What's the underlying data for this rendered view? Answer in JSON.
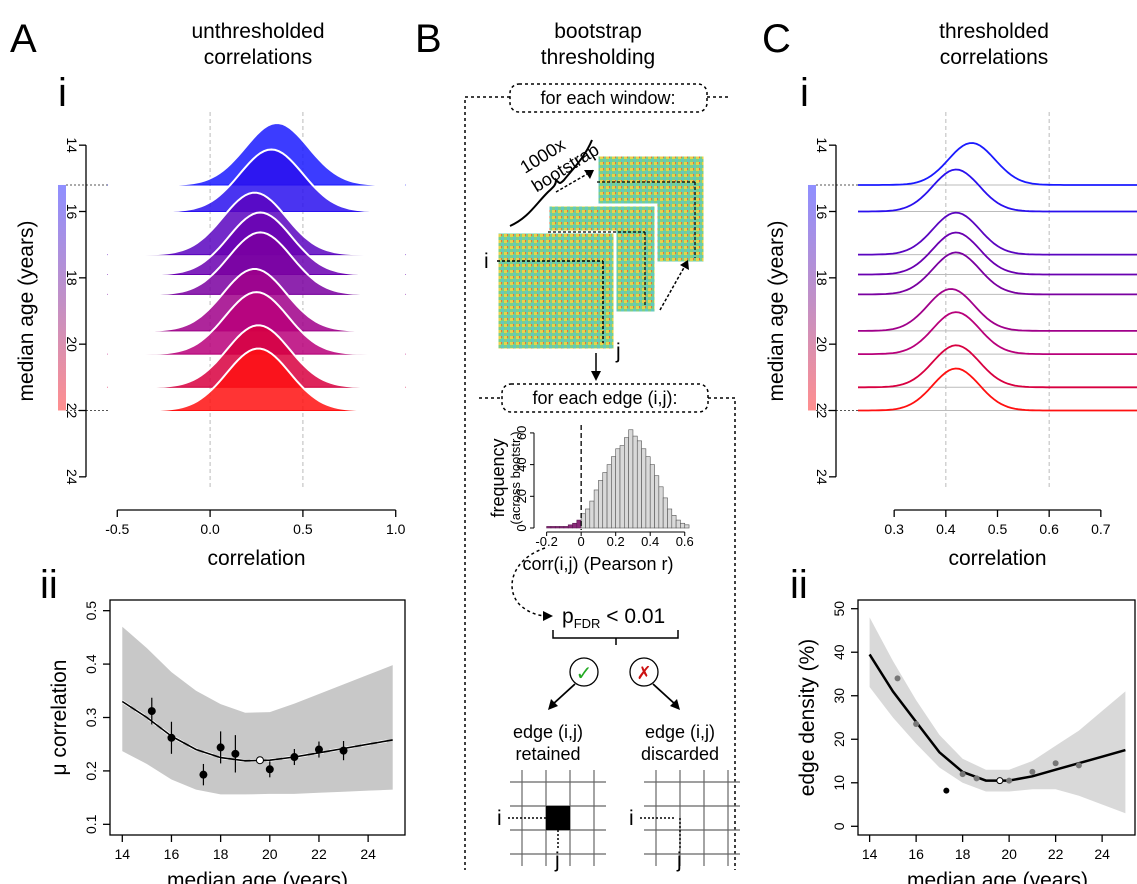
{
  "panels": {
    "A": {
      "letter": "A",
      "title_line1": "unthresholded",
      "title_line2": "correlations",
      "i_label": "i",
      "ii_label": "ii"
    },
    "B": {
      "letter": "B",
      "title_line1": "bootstrap",
      "title_line2": "thresholding",
      "window_box": "for each window:",
      "bootstrap_line1": "1000x",
      "bootstrap_line2": "bootstrap",
      "i_label": "i",
      "j_label": "j",
      "edge_box": "for each edge (i,j):",
      "pfdr": "p",
      "pfdr_sub": "FDR",
      "pfdr_rest": " < 0.01",
      "check": "✓",
      "cross": "✗",
      "retained_line1": "edge (i,j)",
      "retained_line2": "retained",
      "discarded_line1": "edge (i,j)",
      "discarded_line2": "discarded",
      "grid_i": "i",
      "grid_j": "j"
    },
    "C": {
      "letter": "C",
      "title_line1": "thresholded",
      "title_line2": "correlations",
      "i_label": "i",
      "ii_label": "ii"
    }
  },
  "colors": {
    "blue": "#1a1aff",
    "purple": "#7a00aa",
    "red": "#ff1010",
    "grey_band": "#d9d9d9",
    "magenta_hist": "#8b2a7a"
  },
  "chart_data": [
    {
      "id": "A-i",
      "type": "ridgeline",
      "xlabel": "correlation",
      "ylabel": "median age (years)",
      "xticks": [
        "-0.5",
        "0.0",
        "0.5",
        "1.0"
      ],
      "xtick_values": [
        -0.5,
        0.0,
        0.5,
        1.0
      ],
      "yticks": [
        "14",
        "16",
        "18",
        "20",
        "22",
        "24"
      ],
      "ytick_values": [
        14,
        16,
        18,
        20,
        22,
        24
      ],
      "xlim": [
        -0.55,
        1.05
      ],
      "ylim": [
        13.0,
        25.0
      ],
      "series": [
        {
          "age": 15.2,
          "peak": 0.36,
          "color": "#1a1aff"
        },
        {
          "age": 16.0,
          "peak": 0.33,
          "color": "#2a10ee"
        },
        {
          "age": 17.3,
          "peak": 0.24,
          "color": "#5a05c0"
        },
        {
          "age": 17.9,
          "peak": 0.27,
          "color": "#6a00b0"
        },
        {
          "age": 18.5,
          "peak": 0.27,
          "color": "#7a00a0"
        },
        {
          "age": 19.6,
          "peak": 0.24,
          "color": "#a0008a"
        },
        {
          "age": 20.3,
          "peak": 0.25,
          "color": "#b8007a"
        },
        {
          "age": 21.3,
          "peak": 0.26,
          "color": "#d80040"
        },
        {
          "age": 22.0,
          "peak": 0.26,
          "color": "#ff1010"
        }
      ]
    },
    {
      "id": "A-ii",
      "type": "scatter",
      "xlabel": "median age (years)",
      "ylabel": "μ correlation",
      "xticks": [
        "14",
        "16",
        "18",
        "20",
        "22",
        "24"
      ],
      "xtick_values": [
        14,
        16,
        18,
        20,
        22,
        24
      ],
      "yticks": [
        "0.1",
        "0.2",
        "0.3",
        "0.4",
        "0.5"
      ],
      "ytick_values": [
        0.1,
        0.2,
        0.3,
        0.4,
        0.5
      ],
      "xlim": [
        13.5,
        25.5
      ],
      "ylim": [
        0.08,
        0.52
      ],
      "points": [
        {
          "x": 15.2,
          "y": 0.312,
          "err": 0.025
        },
        {
          "x": 16.0,
          "y": 0.262,
          "err": 0.03
        },
        {
          "x": 17.3,
          "y": 0.193,
          "err": 0.02
        },
        {
          "x": 18.0,
          "y": 0.244,
          "err": 0.03
        },
        {
          "x": 18.6,
          "y": 0.232,
          "err": 0.035
        },
        {
          "x": 19.6,
          "y": 0.22,
          "open": true
        },
        {
          "x": 20.0,
          "y": 0.203,
          "err": 0.015
        },
        {
          "x": 21.0,
          "y": 0.226,
          "err": 0.015
        },
        {
          "x": 22.0,
          "y": 0.24,
          "err": 0.015
        },
        {
          "x": 23.0,
          "y": 0.238,
          "err": 0.018
        }
      ],
      "fit": [
        [
          14,
          0.33
        ],
        [
          15,
          0.3
        ],
        [
          16,
          0.265
        ],
        [
          17,
          0.24
        ],
        [
          18,
          0.225
        ],
        [
          19,
          0.219
        ],
        [
          20,
          0.22
        ],
        [
          21,
          0.226
        ],
        [
          22,
          0.234
        ],
        [
          23,
          0.242
        ],
        [
          24,
          0.25
        ],
        [
          25,
          0.258
        ]
      ]
    },
    {
      "id": "B-histogram",
      "type": "bar",
      "xlabel": "corr(i,j) (Pearson r)",
      "ylabel": "frequency (across bootstr.)",
      "xticks": [
        "-0.2",
        "0",
        "0.2",
        "0.4",
        "0.6"
      ],
      "xtick_values": [
        -0.2,
        0,
        0.2,
        0.4,
        0.6
      ],
      "yticks": [
        "0",
        "20",
        "40",
        "60"
      ],
      "ytick_values": [
        0,
        20,
        40,
        60
      ],
      "xlim": [
        -0.25,
        0.7
      ],
      "ylim": [
        0,
        65
      ],
      "bin_width": 0.025,
      "bin_starts": [
        -0.2,
        -0.175,
        -0.15,
        -0.125,
        -0.1,
        -0.075,
        -0.05,
        -0.025,
        0.0,
        0.025,
        0.05,
        0.075,
        0.1,
        0.125,
        0.15,
        0.175,
        0.2,
        0.225,
        0.25,
        0.275,
        0.3,
        0.325,
        0.35,
        0.375,
        0.4,
        0.425,
        0.45,
        0.475,
        0.5,
        0.525,
        0.55,
        0.575,
        0.6
      ],
      "counts": [
        1,
        1,
        1,
        1,
        1,
        2,
        3,
        5,
        9,
        12,
        17,
        24,
        30,
        35,
        40,
        45,
        50,
        52,
        57,
        62,
        58,
        55,
        50,
        45,
        40,
        33,
        26,
        19,
        12,
        8,
        5,
        3,
        2
      ],
      "dashed_x": 0
    },
    {
      "id": "C-i",
      "type": "ridgeline",
      "xlabel": "correlation",
      "ylabel": "median age (years)",
      "xticks": [
        "0.3",
        "0.4",
        "0.5",
        "0.6",
        "0.7"
      ],
      "xtick_values": [
        0.3,
        0.4,
        0.5,
        0.6,
        0.7
      ],
      "yticks": [
        "14",
        "16",
        "18",
        "20",
        "22",
        "24"
      ],
      "ytick_values": [
        14,
        16,
        18,
        20,
        22,
        24
      ],
      "xlim": [
        0.23,
        0.77
      ],
      "ylim": [
        13.0,
        25.0
      ],
      "series": [
        {
          "age": 15.2,
          "peak": 0.45,
          "color": "#1a1aff"
        },
        {
          "age": 16.0,
          "peak": 0.42,
          "color": "#2a10ee"
        },
        {
          "age": 17.3,
          "peak": 0.42,
          "color": "#5a05c0"
        },
        {
          "age": 17.9,
          "peak": 0.42,
          "color": "#6a00b0"
        },
        {
          "age": 18.5,
          "peak": 0.42,
          "color": "#7a00a0"
        },
        {
          "age": 19.6,
          "peak": 0.41,
          "color": "#a0008a"
        },
        {
          "age": 20.3,
          "peak": 0.42,
          "color": "#b8007a"
        },
        {
          "age": 21.3,
          "peak": 0.42,
          "color": "#d80040"
        },
        {
          "age": 22.0,
          "peak": 0.42,
          "color": "#ff1010"
        }
      ]
    },
    {
      "id": "C-ii",
      "type": "scatter",
      "xlabel": "median age (years)",
      "ylabel": "edge density (%)",
      "xticks": [
        "14",
        "16",
        "18",
        "20",
        "22",
        "24"
      ],
      "xtick_values": [
        14,
        16,
        18,
        20,
        22,
        24
      ],
      "yticks": [
        "0",
        "10",
        "20",
        "30",
        "40",
        "50"
      ],
      "ytick_values": [
        0,
        10,
        20,
        30,
        40,
        50
      ],
      "xlim": [
        13.5,
        25.5
      ],
      "ylim": [
        -2,
        52
      ],
      "points": [
        {
          "x": 15.2,
          "y": 34
        },
        {
          "x": 16.0,
          "y": 23.5
        },
        {
          "x": 17.3,
          "y": 8.2,
          "dark": true
        },
        {
          "x": 18.0,
          "y": 12
        },
        {
          "x": 18.6,
          "y": 11
        },
        {
          "x": 19.6,
          "y": 10.5,
          "open": true
        },
        {
          "x": 20.0,
          "y": 10.5
        },
        {
          "x": 21.0,
          "y": 12.5
        },
        {
          "x": 22.0,
          "y": 14.5
        },
        {
          "x": 23.0,
          "y": 14
        }
      ],
      "fit": [
        [
          14,
          39.5
        ],
        [
          15,
          31
        ],
        [
          16,
          24
        ],
        [
          17,
          17
        ],
        [
          18,
          12.5
        ],
        [
          19,
          10.5
        ],
        [
          20,
          10.5
        ],
        [
          21,
          11.5
        ],
        [
          22,
          13
        ],
        [
          23,
          14.5
        ],
        [
          24,
          16
        ],
        [
          25,
          17.5
        ]
      ],
      "band_upper": [
        [
          14,
          48
        ],
        [
          15,
          38
        ],
        [
          16,
          29
        ],
        [
          17,
          21
        ],
        [
          18,
          15.5
        ],
        [
          19,
          13
        ],
        [
          20,
          13
        ],
        [
          21,
          15
        ],
        [
          22,
          18.5
        ],
        [
          23,
          22
        ],
        [
          24,
          26.5
        ],
        [
          25,
          31
        ]
      ],
      "band_lower": [
        [
          14,
          32
        ],
        [
          15,
          25
        ],
        [
          16,
          19
        ],
        [
          17,
          13.5
        ],
        [
          18,
          10
        ],
        [
          19,
          8
        ],
        [
          20,
          8
        ],
        [
          21,
          8.5
        ],
        [
          22,
          8.5
        ],
        [
          23,
          7
        ],
        [
          24,
          5
        ],
        [
          25,
          3
        ]
      ]
    }
  ]
}
